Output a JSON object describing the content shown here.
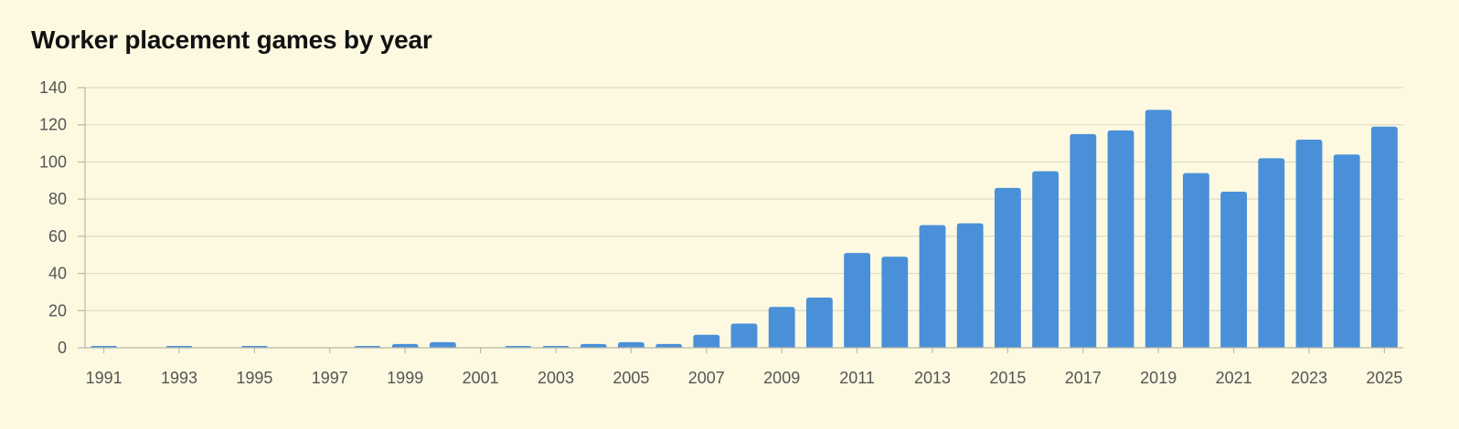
{
  "chart_data": {
    "type": "bar",
    "title": "Worker placement games by year",
    "xlabel": "",
    "ylabel": "",
    "ylim": [
      0,
      140
    ],
    "yticks": [
      0,
      20,
      40,
      60,
      80,
      100,
      120,
      140
    ],
    "grid": true,
    "legend": "none",
    "bar_color": "#4a90d9",
    "categories": [
      "1991",
      "1992",
      "1993",
      "1994",
      "1995",
      "1996",
      "1997",
      "1998",
      "1999",
      "2000",
      "2001",
      "2002",
      "2003",
      "2004",
      "2005",
      "2006",
      "2007",
      "2008",
      "2009",
      "2010",
      "2011",
      "2012",
      "2013",
      "2014",
      "2015",
      "2016",
      "2017",
      "2018",
      "2019",
      "2020",
      "2021",
      "2022",
      "2023",
      "2024",
      "2025"
    ],
    "x_tick_labels": [
      "1991",
      "1993",
      "1995",
      "1997",
      "1999",
      "2001",
      "2003",
      "2005",
      "2007",
      "2009",
      "2011",
      "2013",
      "2015",
      "2017",
      "2019",
      "2021",
      "2023",
      "2025"
    ],
    "values": [
      1,
      0,
      1,
      0,
      1,
      0,
      0,
      1,
      2,
      3,
      0,
      1,
      1,
      2,
      3,
      2,
      7,
      13,
      22,
      27,
      51,
      49,
      66,
      67,
      86,
      95,
      115,
      117,
      128,
      94,
      84,
      102,
      112,
      104,
      119
    ]
  },
  "colors": {
    "background": "#fdf9e1",
    "bar": "#4a90d9",
    "grid": "#dcdcc8",
    "axis": "#b8b8a8",
    "tick_text": "#555555",
    "title_text": "#111111"
  }
}
